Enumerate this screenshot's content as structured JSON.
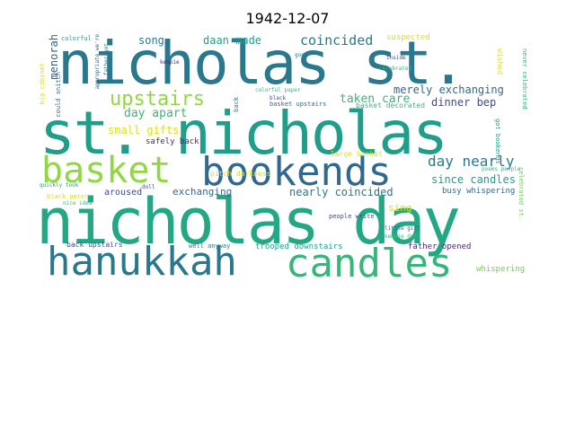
{
  "title": "1942-12-07",
  "words": {
    "nicholas_st": "nicholas st.",
    "st_nicholas": "st. nicholas",
    "nicholas_day": "nicholas day",
    "bookends": "bookends",
    "basket": "basket",
    "hanukkah": "hanukkah",
    "candles": "candles",
    "upstairs": "upstairs",
    "coincided": "coincided",
    "daan_made": "daan made",
    "song": "song",
    "menorah": "menorah",
    "day_apart": "day apart",
    "small_gifts": "small gifts",
    "safely_back": "safely back",
    "taken_care": "taken care",
    "merely_exchanging": "merely exchanging",
    "dinner_bep": "dinner bep",
    "day_nearly": "day nearly",
    "since_candles": "since candles",
    "nearly_coincided": "nearly coincided",
    "exchanging": "exchanging",
    "aroused": "aroused",
    "sing": "sing",
    "busy_whispering": "busy whispering",
    "trooped_downstairs": "trooped downstairs",
    "father_opened": "father opened",
    "whispering": "whispering",
    "back_upstairs": "back upstairs",
    "well_anyway": "well anyway",
    "pitch_darkness": "pitch darkness",
    "large_basket": "large basket",
    "basket_upstairs": "basket upstairs",
    "basket_decorated": "basket decorated",
    "suspected": "suspected",
    "wished": "wished",
    "never_celebrated": "never celebrated",
    "got_bookends": "got bookends",
    "celebrated_st": "celebrated st.",
    "poems_people": "poems people",
    "people_write": "people write",
    "little_gift": "little gift",
    "kempie_doll": "kempie doll",
    "black_peter": "black peter",
    "quickly_took": "quickly took",
    "nice_idea": "nice idea",
    "colorful": "colorful",
    "father_got": "father got",
    "appropriate_we_re": "appropriate we're",
    "could_snitch": "could snitch",
    "big_cabinet": "big cabinet",
    "good": "good",
    "kempie": "kempie",
    "inside": "inside",
    "celebrated": "celebrated",
    "colorful_paper": "colorful paper",
    "black": "black",
    "doll": "doll",
    "back": "back"
  },
  "colors": {
    "teal": "#2a788e",
    "green": "#35b779",
    "lime": "#90d743",
    "navy": "#31688e",
    "seaGreen": "#22a884",
    "yellow": "#d8e219",
    "purple": "#482878",
    "blue": "#3e4a89",
    "cyan": "#1f9e89",
    "lightGreen": "#6ece58"
  }
}
